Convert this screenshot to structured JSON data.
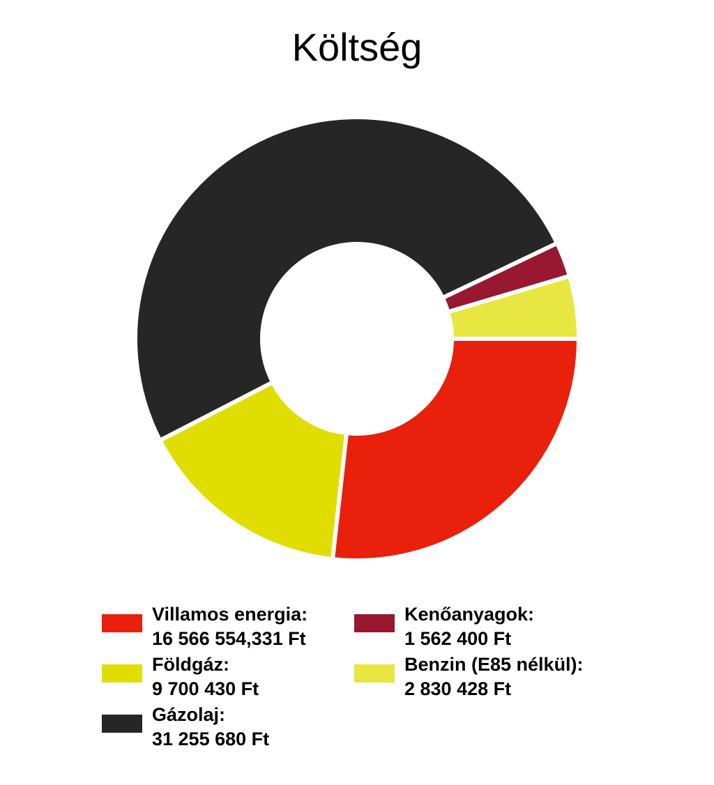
{
  "chart_data": {
    "type": "pie",
    "variant": "donut",
    "title": "Költség",
    "start_angle_deg": 0,
    "direction": "clockwise",
    "slices": [
      {
        "key": "villamos",
        "name": "Villamos energia:",
        "value": 16566554.331,
        "value_label": "16 566 554,331 Ft",
        "color": "#e8200c"
      },
      {
        "key": "foldgaz",
        "name": "Földgáz:",
        "value": 9700430,
        "value_label": "9 700 430 Ft",
        "color": "#e0dd00"
      },
      {
        "key": "gazolaj",
        "name": "Gázolaj:",
        "value": 31255680,
        "value_label": "31 255 680 Ft",
        "color": "#262626"
      },
      {
        "key": "kenoanyag",
        "name": "Kenőanyagok:",
        "value": 1562400,
        "value_label": "1 562 400 Ft",
        "color": "#971830"
      },
      {
        "key": "benzin",
        "name": "Benzin (E85 nélkül):",
        "value": 2830428,
        "value_label": "2 830 428 Ft",
        "color": "#e8e640"
      }
    ],
    "legend_placement": "bottom"
  }
}
